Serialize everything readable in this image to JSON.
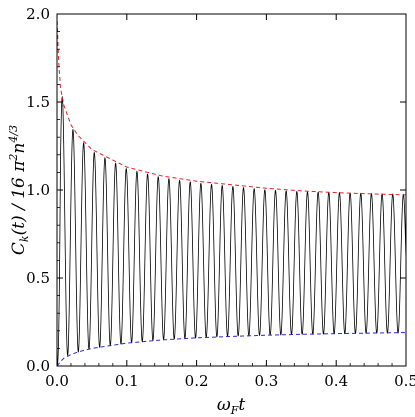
{
  "chart_data": {
    "type": "line",
    "title": "",
    "xlabel": "ωFt",
    "ylabel": "Ck(t) / 16 π²n^(4/3)",
    "xlim": [
      0.0,
      0.5
    ],
    "ylim": [
      0.0,
      2.0
    ],
    "xticks": [
      "0.0",
      "0.1",
      "0.2",
      "0.3",
      "0.4",
      "0.5"
    ],
    "yticks": [
      "0.0",
      "0.5",
      "1.0",
      "1.5",
      "2.0"
    ],
    "grid": false,
    "frame": true,
    "oscillation": {
      "description_free": true,
      "period": 0.01527,
      "last_point": [
        0.5,
        0.66
      ]
    },
    "series": [
      {
        "style": "solid",
        "color": "#000000",
        "x": [
          0.0,
          0.005,
          0.01,
          0.02,
          0.03,
          0.05,
          0.1,
          0.15,
          0.2,
          0.25,
          0.3,
          0.35,
          0.4,
          0.45,
          0.5
        ],
        "upper": [
          0.0,
          1.58,
          1.48,
          1.36,
          1.3,
          1.22,
          1.12,
          1.07,
          1.04,
          1.02,
          1.0,
          0.99,
          0.985,
          0.98,
          0.975
        ],
        "lower": [
          0.0,
          0.03,
          0.05,
          0.07,
          0.08,
          0.1,
          0.13,
          0.15,
          0.16,
          0.17,
          0.175,
          0.18,
          0.183,
          0.186,
          0.188
        ]
      },
      {
        "style": "dashed",
        "color": "#e8202a",
        "x": [
          0.0,
          0.002,
          0.005,
          0.01,
          0.02,
          0.03,
          0.05,
          0.1,
          0.15,
          0.2,
          0.25,
          0.3,
          0.35,
          0.4,
          0.45,
          0.5
        ],
        "values": [
          2.0,
          1.75,
          1.58,
          1.48,
          1.37,
          1.31,
          1.23,
          1.13,
          1.08,
          1.05,
          1.03,
          1.01,
          0.995,
          0.985,
          0.978,
          0.972
        ]
      },
      {
        "style": "dashed",
        "color": "#2a2ad8",
        "x": [
          0.0,
          0.005,
          0.01,
          0.02,
          0.03,
          0.05,
          0.1,
          0.15,
          0.2,
          0.25,
          0.3,
          0.35,
          0.4,
          0.45,
          0.5
        ],
        "values": [
          0.0,
          0.025,
          0.045,
          0.065,
          0.08,
          0.1,
          0.13,
          0.148,
          0.16,
          0.168,
          0.175,
          0.18,
          0.184,
          0.187,
          0.19
        ]
      }
    ]
  }
}
